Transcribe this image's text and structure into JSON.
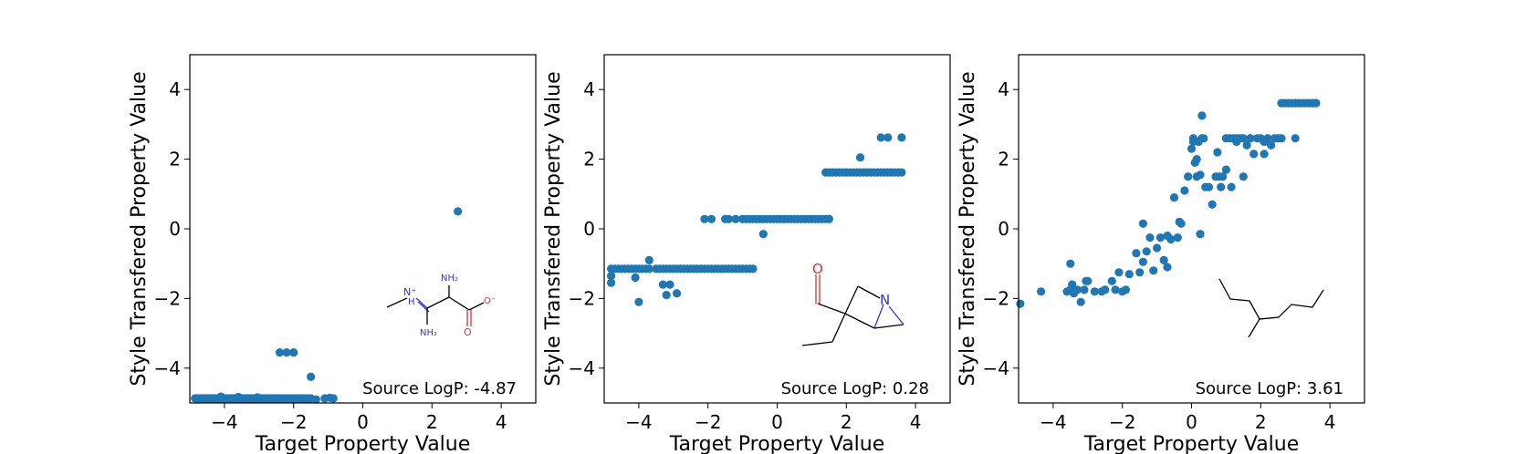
{
  "chart_data": [
    {
      "type": "scatter",
      "xlabel": "Target Property Value",
      "ylabel": "Style Transfered Property Value",
      "xlim": [
        -5,
        5
      ],
      "ylim": [
        -5,
        5
      ],
      "xticks": [
        -4,
        -2,
        0,
        2,
        4
      ],
      "yticks": [
        -4,
        -2,
        0,
        2,
        4
      ],
      "xtick_labels": [
        "−4",
        "−2",
        "0",
        "2",
        "4"
      ],
      "ytick_labels": [
        "−4",
        "−2",
        "0",
        "2",
        "4"
      ],
      "grid": false,
      "marker_color": "#1f77b4",
      "annotation": "Source LogP: -4.87",
      "molecule_labels": [
        "NH₂",
        "N⁺",
        "H",
        "NH₂",
        "O⁻",
        "O"
      ],
      "x": [
        -4.85,
        -4.8,
        -4.75,
        -4.7,
        -4.65,
        -4.6,
        -4.55,
        -4.5,
        -4.45,
        -4.4,
        -4.35,
        -4.3,
        -4.25,
        -4.2,
        -4.15,
        -4.1,
        -4.05,
        -4.0,
        -3.95,
        -3.9,
        -3.85,
        -3.8,
        -3.75,
        -3.7,
        -3.65,
        -3.6,
        -3.55,
        -3.5,
        -3.45,
        -3.4,
        -3.35,
        -3.3,
        -3.25,
        -3.2,
        -3.15,
        -3.1,
        -3.05,
        -3.0,
        -2.95,
        -2.9,
        -2.85,
        -2.8,
        -2.75,
        -2.7,
        -2.65,
        -2.6,
        -2.55,
        -2.5,
        -2.45,
        -2.4,
        -2.35,
        -2.3,
        -2.25,
        -2.2,
        -2.15,
        -2.1,
        -2.05,
        -2.0,
        -1.95,
        -1.9,
        -1.85,
        -1.8,
        -1.75,
        -1.7,
        -1.65,
        -1.6,
        -1.5,
        -1.35,
        -1.1,
        -0.95,
        -0.85,
        -4.1,
        -3.6,
        -3.05,
        -2.4,
        -2.2,
        -2.0,
        -1.5,
        2.75
      ],
      "y": [
        -4.87,
        -4.87,
        -4.87,
        -4.87,
        -4.87,
        -4.87,
        -4.87,
        -4.87,
        -4.87,
        -4.87,
        -4.87,
        -4.87,
        -4.87,
        -4.87,
        -4.87,
        -4.87,
        -4.87,
        -4.87,
        -4.87,
        -4.87,
        -4.87,
        -4.87,
        -4.87,
        -4.87,
        -4.87,
        -4.87,
        -4.87,
        -4.87,
        -4.87,
        -4.87,
        -4.87,
        -4.87,
        -4.87,
        -4.87,
        -4.87,
        -4.87,
        -4.87,
        -4.87,
        -4.87,
        -4.87,
        -4.87,
        -4.87,
        -4.87,
        -4.87,
        -4.87,
        -4.87,
        -4.87,
        -4.87,
        -4.87,
        -4.87,
        -4.87,
        -4.87,
        -4.87,
        -4.87,
        -4.87,
        -4.87,
        -4.87,
        -4.87,
        -4.87,
        -4.87,
        -4.87,
        -4.87,
        -4.87,
        -4.87,
        -4.87,
        -4.87,
        -4.87,
        -4.9,
        -4.87,
        -4.85,
        -4.87,
        -4.82,
        -4.83,
        -4.84,
        -3.55,
        -3.55,
        -3.55,
        -4.25,
        0.5
      ]
    },
    {
      "type": "scatter",
      "xlabel": "Target Property Value",
      "ylabel": "Style Transfered Property Value",
      "xlim": [
        -5,
        5
      ],
      "ylim": [
        -5,
        5
      ],
      "xticks": [
        -4,
        -2,
        0,
        2,
        4
      ],
      "yticks": [
        -4,
        -2,
        0,
        2,
        4
      ],
      "xtick_labels": [
        "−4",
        "−2",
        "0",
        "2",
        "4"
      ],
      "ytick_labels": [
        "−4",
        "−2",
        "0",
        "2",
        "4"
      ],
      "grid": false,
      "marker_color": "#1f77b4",
      "annotation": "Source LogP: 0.28",
      "molecule_labels": [
        "O",
        "N"
      ],
      "x": [
        -4.8,
        -4.7,
        -4.6,
        -4.5,
        -4.4,
        -4.3,
        -4.2,
        -4.1,
        -4.0,
        -3.9,
        -3.8,
        -3.7,
        -3.5,
        -3.4,
        -3.3,
        -3.2,
        -3.1,
        -3.0,
        -2.9,
        -2.8,
        -2.7,
        -2.6,
        -2.5,
        -2.4,
        -2.3,
        -2.2,
        -2.1,
        -2.0,
        -1.9,
        -1.8,
        -1.7,
        -1.6,
        -1.5,
        -1.4,
        -1.3,
        -1.2,
        -1.1,
        -1.0,
        -0.9,
        -0.8,
        -0.7,
        -4.8,
        -4.8,
        -4.1,
        -3.7,
        -3.3,
        -3.1,
        -3.2,
        -2.9,
        -4.0,
        -2.1,
        -1.9,
        -1.5,
        -1.4,
        -1.2,
        -1.0,
        -0.9,
        -0.8,
        -0.7,
        -0.6,
        -0.5,
        -0.4,
        -0.3,
        -0.2,
        -0.1,
        0.0,
        0.1,
        0.2,
        0.3,
        0.4,
        0.5,
        0.6,
        0.7,
        0.8,
        0.9,
        1.0,
        1.1,
        1.2,
        1.3,
        1.4,
        1.5,
        -0.4,
        1.4,
        1.5,
        1.6,
        1.7,
        1.8,
        1.9,
        2.0,
        2.1,
        2.2,
        2.3,
        2.4,
        2.5,
        2.6,
        2.7,
        2.8,
        2.9,
        3.0,
        3.1,
        3.2,
        3.3,
        3.4,
        3.5,
        3.6,
        2.4,
        3.0,
        3.2,
        3.6
      ],
      "y": [
        -1.15,
        -1.15,
        -1.15,
        -1.15,
        -1.15,
        -1.15,
        -1.15,
        -1.15,
        -1.15,
        -1.15,
        -1.15,
        -1.15,
        -1.15,
        -1.15,
        -1.15,
        -1.15,
        -1.15,
        -1.15,
        -1.15,
        -1.15,
        -1.15,
        -1.15,
        -1.15,
        -1.15,
        -1.15,
        -1.15,
        -1.15,
        -1.15,
        -1.15,
        -1.15,
        -1.15,
        -1.15,
        -1.15,
        -1.15,
        -1.15,
        -1.15,
        -1.15,
        -1.15,
        -1.15,
        -1.15,
        -1.15,
        -1.35,
        -1.55,
        -1.4,
        -0.9,
        -1.6,
        -1.6,
        -1.9,
        -1.85,
        -2.1,
        0.28,
        0.28,
        0.28,
        0.28,
        0.28,
        0.28,
        0.28,
        0.28,
        0.28,
        0.28,
        0.28,
        0.28,
        0.28,
        0.28,
        0.28,
        0.28,
        0.28,
        0.28,
        0.28,
        0.28,
        0.28,
        0.28,
        0.28,
        0.28,
        0.28,
        0.28,
        0.28,
        0.28,
        0.28,
        0.28,
        0.28,
        -0.15,
        1.62,
        1.62,
        1.62,
        1.62,
        1.62,
        1.62,
        1.62,
        1.62,
        1.62,
        1.62,
        1.62,
        1.62,
        1.62,
        1.62,
        1.62,
        1.62,
        1.62,
        1.62,
        1.62,
        1.62,
        1.62,
        1.62,
        1.62,
        2.05,
        2.62,
        2.62,
        2.62
      ]
    },
    {
      "type": "scatter",
      "xlabel": "Target Property Value",
      "ylabel": "Style Transfered Property Value",
      "xlim": [
        -5,
        5
      ],
      "ylim": [
        -5,
        5
      ],
      "xticks": [
        -4,
        -2,
        0,
        2,
        4
      ],
      "yticks": [
        -4,
        -2,
        0,
        2,
        4
      ],
      "xtick_labels": [
        "−4",
        "−2",
        "0",
        "2",
        "4"
      ],
      "ytick_labels": [
        "−4",
        "−2",
        "0",
        "2",
        "4"
      ],
      "grid": false,
      "marker_color": "#1f77b4",
      "annotation": "Source LogP: 3.61",
      "molecule_labels": [],
      "x": [
        -4.95,
        -4.35,
        -3.6,
        -3.5,
        -3.45,
        -3.4,
        -3.3,
        -3.2,
        -3.1,
        -3.05,
        -3.0,
        -2.8,
        -2.6,
        -2.5,
        -2.3,
        -2.2,
        -2.1,
        -2.0,
        -1.9,
        -1.8,
        -1.6,
        -1.5,
        -1.4,
        -1.3,
        -1.2,
        -1.1,
        -1.0,
        -0.9,
        -0.8,
        -0.7,
        -0.6,
        -0.5,
        -0.4,
        -0.3,
        -0.2,
        -0.1,
        0.0,
        0.05,
        0.1,
        0.15,
        0.2,
        0.3,
        0.4,
        0.5,
        0.6,
        0.7,
        0.8,
        0.9,
        1.0,
        1.1,
        1.2,
        1.3,
        1.4,
        1.5,
        1.6,
        1.7,
        1.8,
        1.9,
        2.0,
        2.1,
        2.2,
        2.3,
        2.4,
        2.5,
        2.6,
        3.0,
        -3.5,
        -1.4,
        -0.7,
        -0.35,
        0.05,
        0.15,
        0.25,
        0.35,
        0.75,
        0.85,
        1.0,
        1.15,
        1.3,
        1.5,
        1.7,
        2.1,
        0.3,
        2.6,
        2.7,
        2.8,
        2.9,
        3.0,
        3.1,
        3.2,
        3.3,
        3.4,
        3.5,
        3.6,
        0.25
      ],
      "y": [
        -2.15,
        -1.8,
        -1.8,
        -1.75,
        -1.6,
        -1.85,
        -1.75,
        -2.1,
        -1.75,
        -1.5,
        -1.5,
        -1.8,
        -1.8,
        -1.75,
        -1.5,
        -1.75,
        -1.25,
        -1.8,
        -1.75,
        -1.3,
        -0.7,
        -1.25,
        -0.95,
        -0.65,
        -0.25,
        -1.2,
        -0.55,
        -0.25,
        -0.9,
        -1.1,
        -0.3,
        0.9,
        -0.25,
        0.15,
        1.1,
        1.5,
        2.3,
        2.6,
        1.9,
        1.5,
        2.5,
        2.6,
        1.2,
        1.2,
        0.7,
        1.5,
        1.5,
        1.5,
        2.6,
        2.6,
        2.6,
        2.6,
        2.6,
        2.6,
        2.4,
        2.6,
        2.15,
        2.6,
        2.6,
        2.15,
        2.6,
        2.4,
        2.6,
        2.6,
        2.6,
        2.6,
        -1.0,
        0.15,
        -0.2,
        0.2,
        2.5,
        2.0,
        1.55,
        2.6,
        2.2,
        1.2,
        1.7,
        1.2,
        2.5,
        1.5,
        2.6,
        2.5,
        3.25,
        3.61,
        3.61,
        3.61,
        3.61,
        3.61,
        3.61,
        3.61,
        3.61,
        3.61,
        3.61,
        3.61,
        -0.15
      ]
    }
  ]
}
